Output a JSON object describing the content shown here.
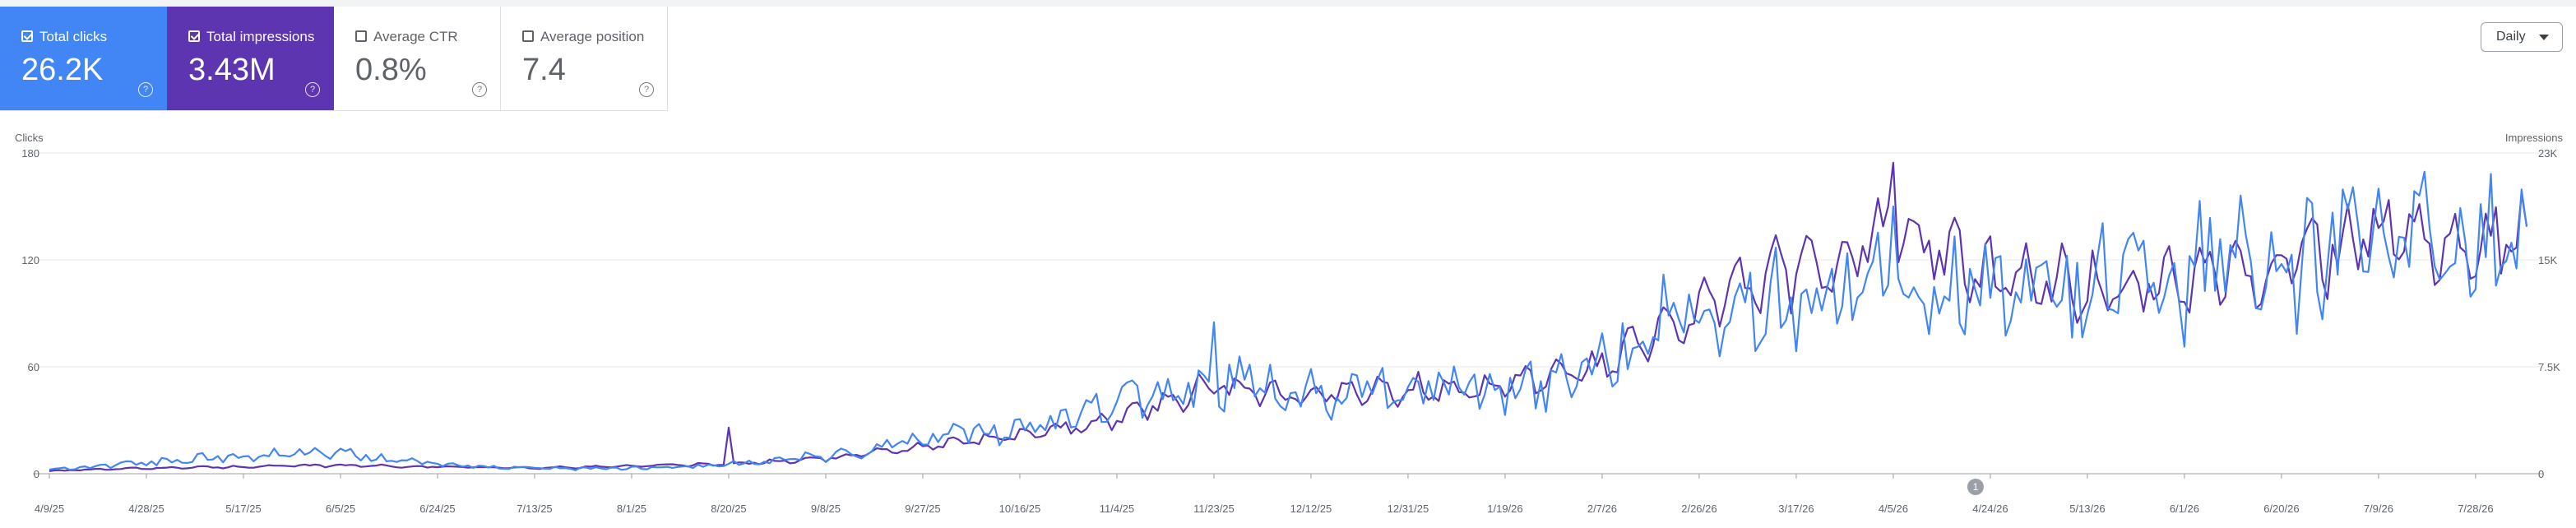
{
  "metrics": [
    {
      "label": "Total clicks",
      "value": "26.2K",
      "checked": true,
      "color": "#4285f4"
    },
    {
      "label": "Total impressions",
      "value": "3.43M",
      "checked": true,
      "color": "#5e35b1"
    },
    {
      "label": "Average CTR",
      "value": "0.8%",
      "checked": false,
      "color": "#ffffff"
    },
    {
      "label": "Average position",
      "value": "7.4",
      "checked": false,
      "color": "#ffffff"
    }
  ],
  "help_glyph": "?",
  "granularity": {
    "label": "Daily"
  },
  "annotation_marker": "1",
  "chart_data": {
    "type": "line",
    "x_start": "2025-04-09",
    "x_end": "2026-08-07",
    "left_axis": {
      "label": "Clicks",
      "ticks": [
        "0",
        "60",
        "120",
        "180"
      ],
      "ylim": [
        0,
        180
      ]
    },
    "right_axis": {
      "label": "Impressions",
      "ticks": [
        "0",
        "7.5K",
        "15K",
        "23K"
      ],
      "ylim": [
        0,
        23000
      ]
    },
    "x_tick_labels": [
      "4/9/25",
      "4/28/25",
      "5/17/25",
      "6/5/25",
      "6/24/25",
      "7/13/25",
      "8/1/25",
      "8/20/25",
      "9/8/25",
      "9/27/25",
      "10/16/25",
      "11/4/25",
      "11/23/25",
      "12/12/25",
      "12/31/25",
      "1/19/26",
      "2/7/26",
      "2/26/26",
      "3/17/26",
      "4/5/26",
      "4/24/26",
      "5/13/26",
      "6/1/26",
      "6/20/26",
      "7/9/26",
      "7/28/26"
    ],
    "series": [
      {
        "name": "Total clicks",
        "axis": "left",
        "color": "#4285f4",
        "x": [
          "4/9/25",
          "4/28/25",
          "5/17/25",
          "6/5/25",
          "6/24/25",
          "7/13/25",
          "8/1/25",
          "8/20/25",
          "9/8/25",
          "9/27/25",
          "10/16/25",
          "11/4/25",
          "11/23/25",
          "12/12/25",
          "12/31/25",
          "1/19/26",
          "2/7/26",
          "2/26/26",
          "3/17/26",
          "4/5/26",
          "4/24/26",
          "5/13/26",
          "6/1/26",
          "6/20/26",
          "7/9/26",
          "7/28/26",
          "8/7/26"
        ],
        "values": [
          2,
          6,
          10,
          12,
          5,
          3,
          3,
          5,
          10,
          20,
          24,
          38,
          55,
          45,
          48,
          50,
          60,
          95,
          105,
          110,
          100,
          105,
          112,
          120,
          135,
          128,
          130
        ],
        "extremes": [
          {
            "x": "11/23/25",
            "value": 85
          },
          {
            "x": "4/5/26",
            "value": 150
          },
          {
            "x": "7/9/26",
            "value": 160
          }
        ]
      },
      {
        "name": "Total impressions",
        "axis": "right",
        "color": "#5e35b1",
        "x": [
          "4/9/25",
          "4/28/25",
          "5/17/25",
          "6/5/25",
          "6/24/25",
          "7/13/25",
          "8/1/25",
          "8/20/25",
          "9/8/25",
          "9/27/25",
          "10/16/25",
          "11/4/25",
          "11/23/25",
          "12/12/25",
          "12/31/25",
          "1/19/26",
          "2/7/26",
          "2/26/26",
          "3/17/26",
          "4/5/26",
          "4/24/26",
          "5/13/26",
          "6/1/26",
          "6/20/26",
          "7/9/26",
          "7/28/26",
          "8/7/26"
        ],
        "values": [
          200,
          400,
          500,
          600,
          500,
          400,
          550,
          700,
          1100,
          1900,
          2700,
          4000,
          6400,
          5500,
          6000,
          6400,
          7500,
          12000,
          14500,
          17500,
          14000,
          13500,
          14000,
          15000,
          17500,
          16500,
          17000
        ],
        "extremes": [
          {
            "x": "8/20/25",
            "value": 3300
          },
          {
            "x": "4/5/26",
            "value": 22300
          }
        ]
      }
    ]
  }
}
